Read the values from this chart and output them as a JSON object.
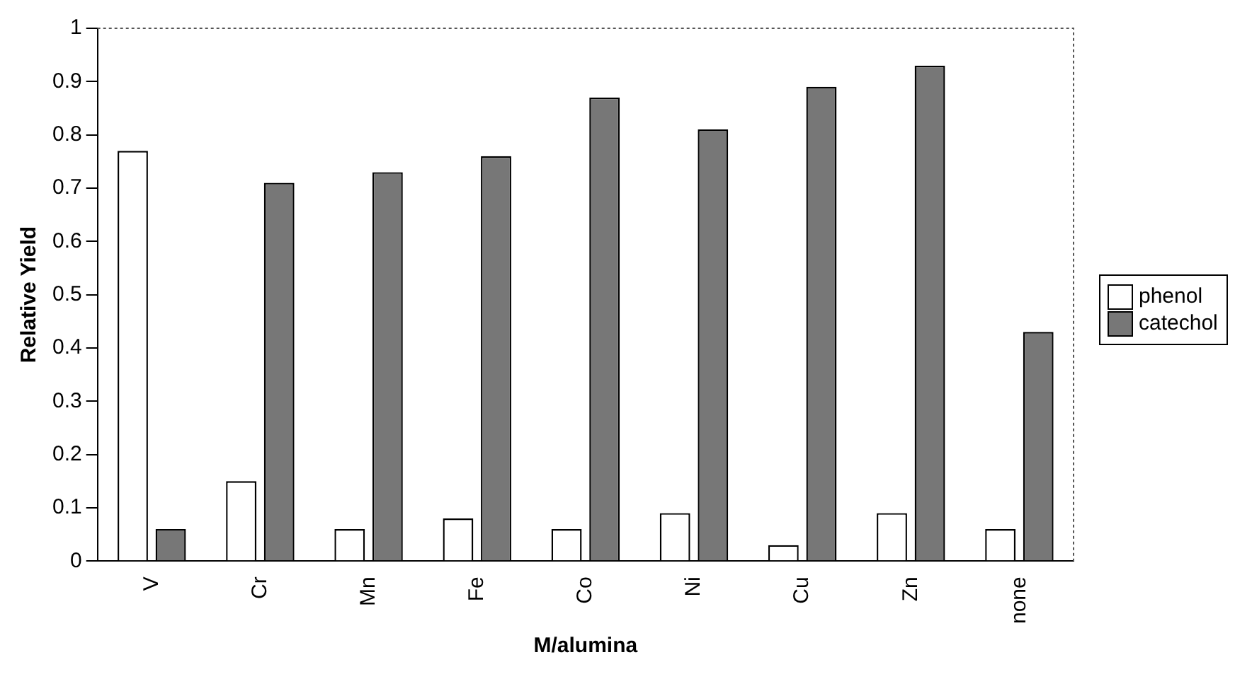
{
  "chart_data": {
    "type": "bar",
    "xlabel": "M/alumina",
    "ylabel": "Relative Yield",
    "categories": [
      "V",
      "Cr",
      "Mn",
      "Fe",
      "Co",
      "Ni",
      "Cu",
      "Zn",
      "none"
    ],
    "series": [
      {
        "name": "phenol",
        "color": "#ffffff",
        "values": [
          0.77,
          0.15,
          0.06,
          0.08,
          0.06,
          0.09,
          0.03,
          0.09,
          0.06
        ]
      },
      {
        "name": "catechol",
        "color": "#777777",
        "values": [
          0.06,
          0.71,
          0.73,
          0.76,
          0.87,
          0.81,
          0.89,
          0.93,
          0.43
        ]
      }
    ],
    "ylim": [
      0,
      1
    ],
    "yticks": [
      0,
      0.1,
      0.2,
      0.3,
      0.4,
      0.5,
      0.6,
      0.7,
      0.8,
      0.9,
      1
    ],
    "grid": false,
    "legend": "right"
  }
}
